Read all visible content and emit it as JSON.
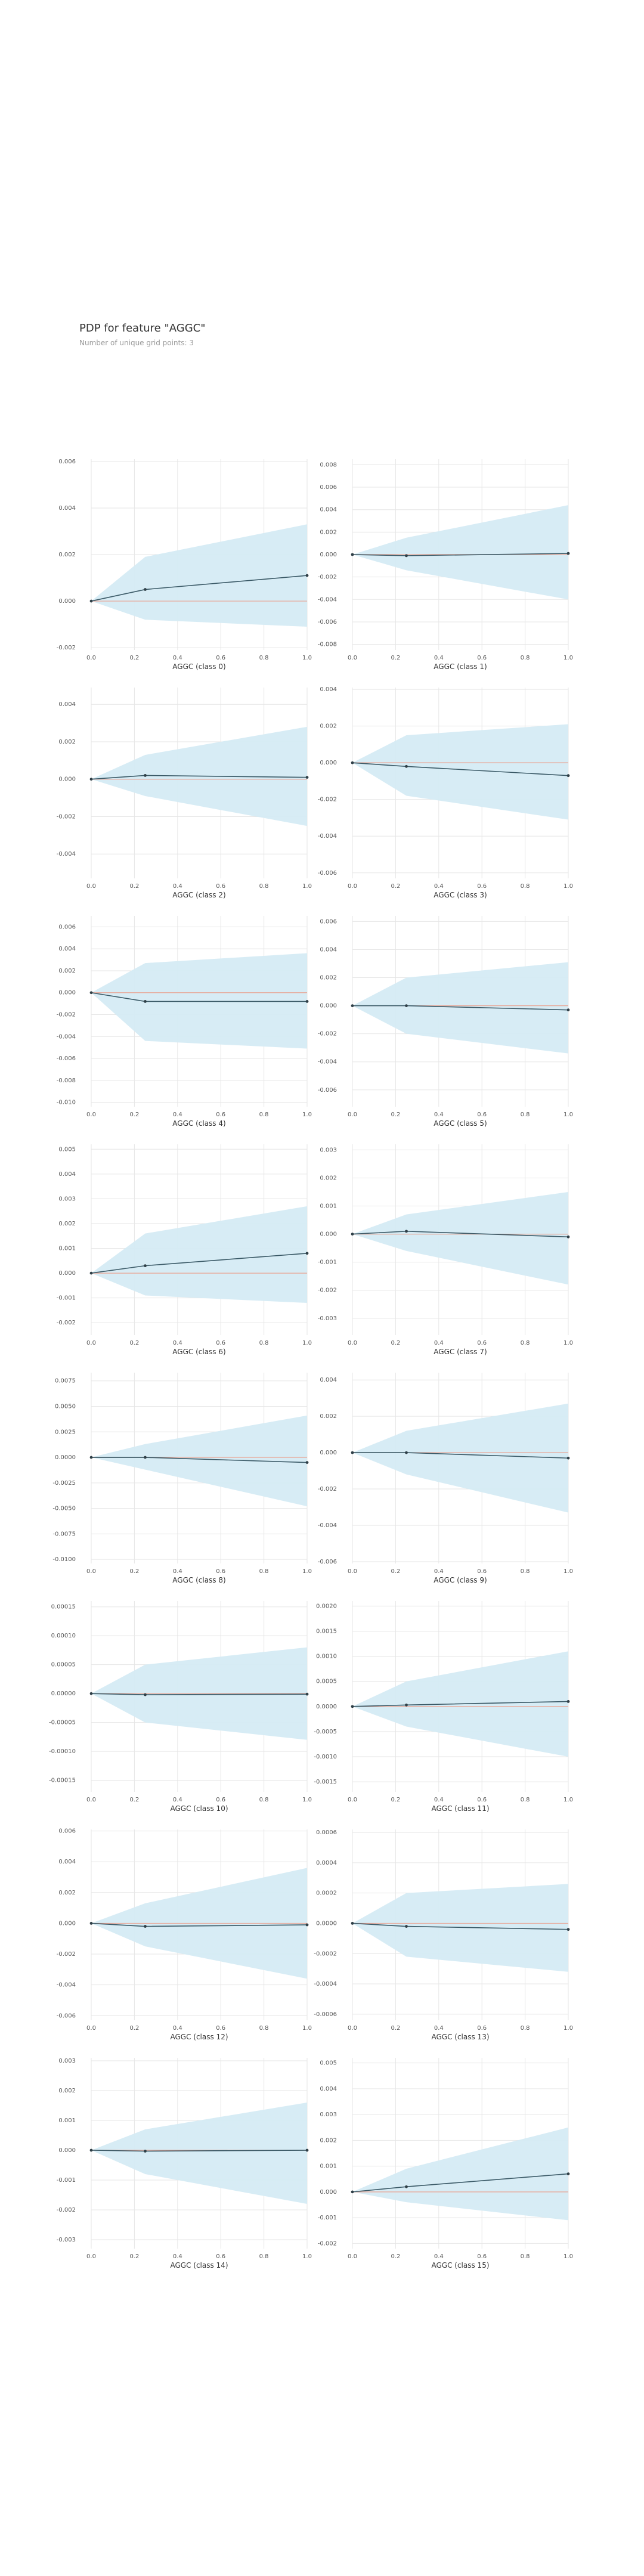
{
  "header": {
    "title": "PDP for feature \"AGGC\"",
    "subtitle": "Number of unique grid points: 3"
  },
  "style": {
    "line_color": "#3b5a67",
    "band_color": "#d5ebf4",
    "zero_line_color": "#e8a494",
    "grid_color": "#e6e6e6"
  },
  "chart_data": [
    {
      "type": "line",
      "xlabel": "AGGC (class 0)",
      "x": [
        0,
        0.25,
        1
      ],
      "y": [
        0,
        0.0005,
        0.0011
      ],
      "upper": [
        0,
        0.0019,
        0.0033
      ],
      "lower": [
        0,
        -0.0008,
        -0.0011
      ],
      "xticks": [
        "0.0",
        "0.2",
        "0.4",
        "0.6",
        "0.8",
        "1.0"
      ],
      "yticks": [
        "0.006",
        "0.004",
        "0.002",
        "0.000",
        "-0.002"
      ],
      "ylim": [
        -0.0021,
        0.0061
      ]
    },
    {
      "type": "line",
      "xlabel": "AGGC (class 1)",
      "x": [
        0,
        0.25,
        1
      ],
      "y": [
        0,
        -0.0001,
        0.0001
      ],
      "upper": [
        0,
        0.0015,
        0.0044
      ],
      "lower": [
        0,
        -0.0014,
        -0.004
      ],
      "xticks": [
        "0.0",
        "0.2",
        "0.4",
        "0.6",
        "0.8",
        "1.0"
      ],
      "yticks": [
        "0.008",
        "0.006",
        "0.004",
        "0.002",
        "0.000",
        "-0.002",
        "-0.004",
        "-0.006",
        "-0.008"
      ],
      "ylim": [
        -0.0085,
        0.0085
      ]
    },
    {
      "type": "line",
      "xlabel": "AGGC (class 2)",
      "x": [
        0,
        0.25,
        1
      ],
      "y": [
        0,
        0.0002,
        0.0001
      ],
      "upper": [
        0,
        0.0013,
        0.0028
      ],
      "lower": [
        0,
        -0.0009,
        -0.0025
      ],
      "xticks": [
        "0.0",
        "0.2",
        "0.4",
        "0.6",
        "0.8",
        "1.0"
      ],
      "yticks": [
        "0.004",
        "0.002",
        "0.000",
        "-0.002",
        "-0.004"
      ],
      "ylim": [
        -0.0053,
        0.0049
      ]
    },
    {
      "type": "line",
      "xlabel": "AGGC (class 3)",
      "x": [
        0,
        0.25,
        1
      ],
      "y": [
        0,
        -0.0002,
        -0.0007
      ],
      "upper": [
        0,
        0.0015,
        0.0021
      ],
      "lower": [
        0,
        -0.0018,
        -0.0031
      ],
      "xticks": [
        "0.0",
        "0.2",
        "0.4",
        "0.6",
        "0.8",
        "1.0"
      ],
      "yticks": [
        "0.004",
        "0.002",
        "0.000",
        "-0.002",
        "-0.004",
        "-0.006"
      ],
      "ylim": [
        -0.0063,
        0.0041
      ]
    },
    {
      "type": "line",
      "xlabel": "AGGC (class 4)",
      "x": [
        0,
        0.25,
        1
      ],
      "y": [
        0,
        -0.0008,
        -0.0008
      ],
      "upper": [
        0,
        0.0027,
        0.0036
      ],
      "lower": [
        0,
        -0.0044,
        -0.0051
      ],
      "xticks": [
        "0.0",
        "0.2",
        "0.4",
        "0.6",
        "0.8",
        "1.0"
      ],
      "yticks": [
        "0.006",
        "0.004",
        "0.002",
        "0.000",
        "-0.002",
        "-0.004",
        "-0.006",
        "-0.008",
        "-0.010"
      ],
      "ylim": [
        -0.0104,
        0.007
      ]
    },
    {
      "type": "line",
      "xlabel": "AGGC (class 5)",
      "x": [
        0,
        0.25,
        1
      ],
      "y": [
        0,
        0.0,
        -0.0003
      ],
      "upper": [
        0,
        0.002,
        0.0031
      ],
      "lower": [
        0,
        -0.002,
        -0.0034
      ],
      "xticks": [
        "0.0",
        "0.2",
        "0.4",
        "0.6",
        "0.8",
        "1.0"
      ],
      "yticks": [
        "0.006",
        "0.004",
        "0.002",
        "0.000",
        "-0.002",
        "-0.004",
        "-0.006"
      ],
      "ylim": [
        -0.0072,
        0.0064
      ]
    },
    {
      "type": "line",
      "xlabel": "AGGC (class 6)",
      "x": [
        0,
        0.25,
        1
      ],
      "y": [
        0,
        0.0003,
        0.0008
      ],
      "upper": [
        0,
        0.0016,
        0.0027
      ],
      "lower": [
        0,
        -0.0009,
        -0.0012
      ],
      "xticks": [
        "0.0",
        "0.2",
        "0.4",
        "0.6",
        "0.8",
        "1.0"
      ],
      "yticks": [
        "0.005",
        "0.004",
        "0.003",
        "0.002",
        "0.001",
        "0.000",
        "-0.001",
        "-0.002"
      ],
      "ylim": [
        -0.0025,
        0.0052
      ]
    },
    {
      "type": "line",
      "xlabel": "AGGC (class 7)",
      "x": [
        0,
        0.25,
        1
      ],
      "y": [
        0,
        0.0001,
        -0.0001
      ],
      "upper": [
        0,
        0.0007,
        0.0015
      ],
      "lower": [
        0,
        -0.0006,
        -0.0018
      ],
      "xticks": [
        "0.0",
        "0.2",
        "0.4",
        "0.6",
        "0.8",
        "1.0"
      ],
      "yticks": [
        "0.003",
        "0.002",
        "0.001",
        "0.000",
        "-0.001",
        "-0.002",
        "-0.003"
      ],
      "ylim": [
        -0.0036,
        0.0032
      ]
    },
    {
      "type": "line",
      "xlabel": "AGGC (class 8)",
      "x": [
        0,
        0.25,
        1
      ],
      "y": [
        0,
        0.0,
        -0.0005
      ],
      "upper": [
        0,
        0.0013,
        0.0041
      ],
      "lower": [
        0,
        -0.0012,
        -0.0048
      ],
      "xticks": [
        "0.0075",
        "0.0050",
        "0.0025",
        "0.0000",
        "-0.0025",
        "-0.0050",
        "-0.0075",
        "-0.0100"
      ],
      "ytick_values": [
        0.0075,
        0.005,
        0.0025,
        0,
        -0.0025,
        -0.005,
        -0.0075,
        -0.01
      ],
      "ylim": [
        -0.0104,
        0.0083
      ]
    },
    {
      "type": "line",
      "xlabel": "AGGC (class 9)",
      "x": [
        0,
        0.25,
        1
      ],
      "y": [
        0,
        0.0,
        -0.0003
      ],
      "upper": [
        0,
        0.0012,
        0.0027
      ],
      "lower": [
        0,
        -0.0012,
        -0.0033
      ],
      "xticks": [
        "0.0",
        "0.2",
        "0.4",
        "0.6",
        "0.8",
        "1.0"
      ],
      "yticks": [
        "0.004",
        "0.002",
        "0.000",
        "-0.002",
        "-0.004",
        "-0.006"
      ],
      "ylim": [
        -0.0061,
        0.0044
      ]
    },
    {
      "type": "line",
      "xlabel": "AGGC (class 10)",
      "x": [
        0,
        0.25,
        1
      ],
      "y": [
        0,
        -2e-06,
        -1e-06
      ],
      "upper": [
        0,
        5e-05,
        8e-05
      ],
      "lower": [
        0,
        -5e-05,
        -8e-05
      ],
      "xticks": [
        "0.0",
        "0.2",
        "0.4",
        "0.6",
        "0.8",
        "1.0"
      ],
      "yticks": [
        "0.00015",
        "0.00010",
        "0.00005",
        "0.00000",
        "-0.00005",
        "-0.00010",
        "-0.00015"
      ],
      "ylim": [
        -0.00017,
        0.00016
      ]
    },
    {
      "type": "line",
      "xlabel": "AGGC (class 11)",
      "x": [
        0,
        0.25,
        1
      ],
      "y": [
        0,
        3e-05,
        0.0001
      ],
      "upper": [
        0,
        0.0005,
        0.0011
      ],
      "lower": [
        0,
        -0.0004,
        -0.001
      ],
      "xticks": [
        "0.0",
        "0.2",
        "0.4",
        "0.6",
        "0.8",
        "1.0"
      ],
      "yticks": [
        "0.0020",
        "0.0015",
        "0.0010",
        "0.0005",
        "0.0000",
        "-0.0005",
        "-0.0010",
        "-0.0015"
      ],
      "ylim": [
        -0.0017,
        0.0021
      ]
    },
    {
      "type": "line",
      "xlabel": "AGGC (class 12)",
      "x": [
        0,
        0.25,
        1
      ],
      "y": [
        0,
        -0.0002,
        -0.0001
      ],
      "upper": [
        0,
        0.0013,
        0.0036
      ],
      "lower": [
        0,
        -0.0015,
        -0.0036
      ],
      "xticks": [
        "0.0",
        "0.2",
        "0.4",
        "0.6",
        "0.8",
        "1.0"
      ],
      "yticks": [
        "0.006",
        "0.004",
        "0.002",
        "0.000",
        "-0.002",
        "-0.004",
        "-0.006"
      ],
      "ylim": [
        -0.0063,
        0.0061
      ]
    },
    {
      "type": "line",
      "xlabel": "AGGC (class 13)",
      "x": [
        0,
        0.25,
        1
      ],
      "y": [
        0,
        -2e-05,
        -4e-05
      ],
      "upper": [
        0,
        0.0002,
        0.00026
      ],
      "lower": [
        0,
        -0.00022,
        -0.00032
      ],
      "xticks": [
        "0.0",
        "0.2",
        "0.4",
        "0.6",
        "0.8",
        "1.0"
      ],
      "yticks": [
        "0.0006",
        "0.0004",
        "0.0002",
        "0.0000",
        "-0.0002",
        "-0.0004",
        "-0.0006"
      ],
      "ylim": [
        -0.00064,
        0.00062
      ]
    },
    {
      "type": "line",
      "xlabel": "AGGC (class 14)",
      "x": [
        0,
        0.25,
        1
      ],
      "y": [
        0,
        -3e-05,
        0.0
      ],
      "upper": [
        0,
        0.0007,
        0.0016
      ],
      "lower": [
        0,
        -0.0008,
        -0.0018
      ],
      "xticks": [
        "0.0",
        "0.2",
        "0.4",
        "0.6",
        "0.8",
        "1.0"
      ],
      "yticks": [
        "0.003",
        "0.002",
        "0.001",
        "0.000",
        "-0.001",
        "-0.002",
        "-0.003"
      ],
      "ylim": [
        -0.0033,
        0.0031
      ]
    },
    {
      "type": "line",
      "xlabel": "AGGC (class 15)",
      "x": [
        0,
        0.25,
        1
      ],
      "y": [
        0,
        0.0002,
        0.0007
      ],
      "upper": [
        0,
        0.0009,
        0.0025
      ],
      "lower": [
        0,
        -0.0004,
        -0.0011
      ],
      "xticks": [
        "0.0",
        "0.2",
        "0.4",
        "0.6",
        "0.8",
        "1.0"
      ],
      "yticks": [
        "0.005",
        "0.004",
        "0.003",
        "0.002",
        "0.001",
        "0.000",
        "-0.001",
        "-0.002"
      ],
      "ylim": [
        -0.0022,
        0.0052
      ]
    }
  ]
}
